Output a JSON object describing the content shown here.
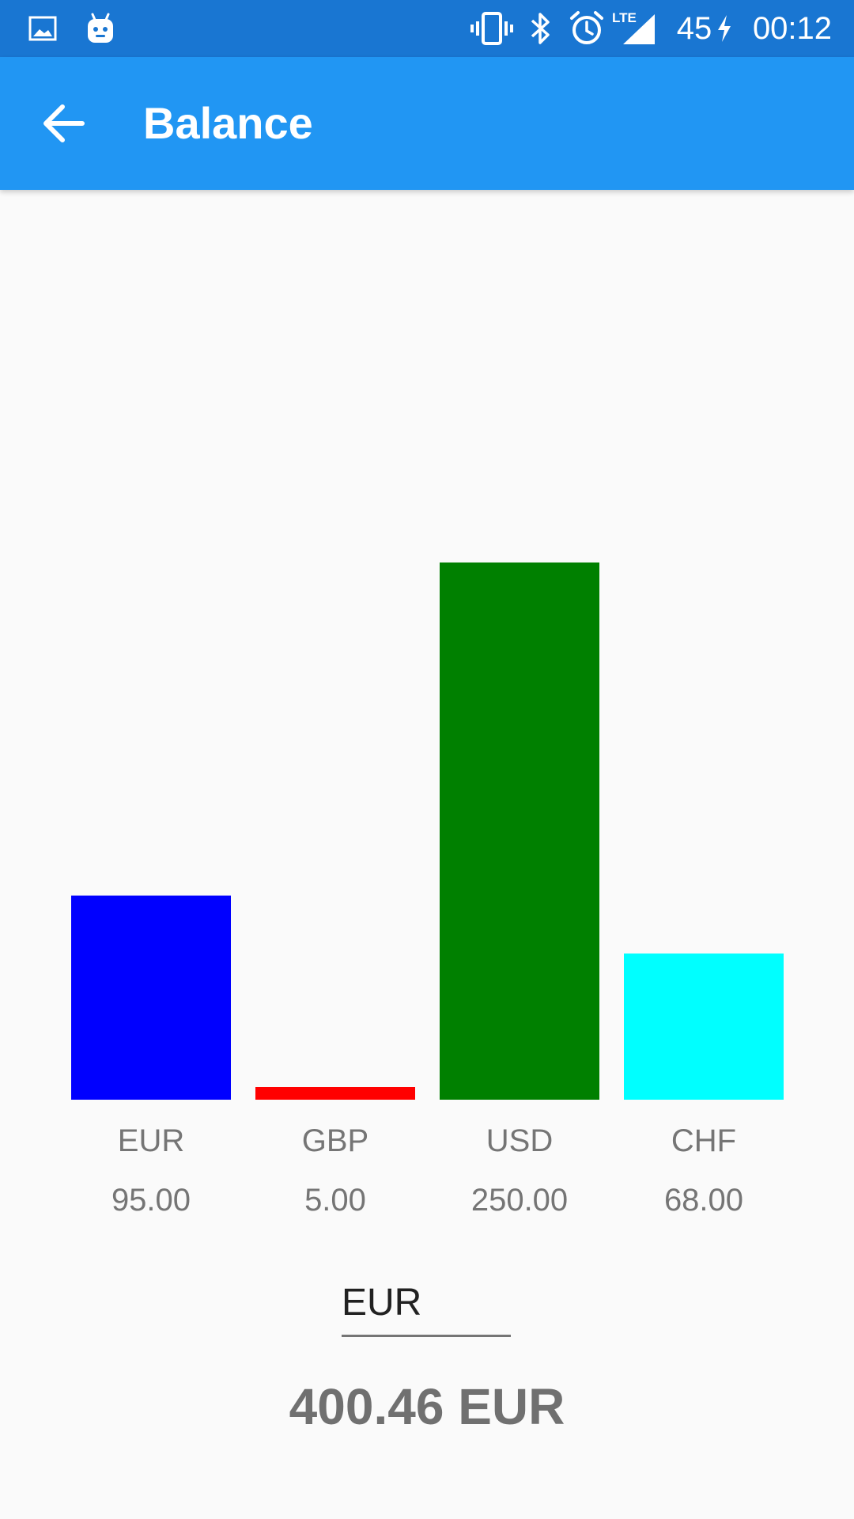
{
  "status_bar": {
    "icons": [
      "image-icon",
      "android-icon",
      "vibrate-icon",
      "bluetooth-icon",
      "alarm-icon",
      "lte-signal-icon",
      "charging-icon"
    ],
    "lte_label": "LTE",
    "battery": "45",
    "time": "00:12"
  },
  "app_bar": {
    "back_icon": "arrow-left-icon",
    "title": "Balance"
  },
  "colors": {
    "status_bar": "#1976d2",
    "app_bar": "#2196f3",
    "background": "#fafafa"
  },
  "chart_data": {
    "type": "bar",
    "categories": [
      "EUR",
      "GBP",
      "USD",
      "CHF"
    ],
    "values": [
      95.0,
      5.0,
      250.0,
      68.0
    ],
    "value_labels": [
      "95.00",
      "5.00",
      "250.00",
      "68.00"
    ],
    "colors": [
      "#0000ff",
      "#ff0000",
      "#008000",
      "#00ffff"
    ],
    "ylim": [
      0,
      250
    ],
    "grid": false,
    "legend": "none"
  },
  "currency_selector": {
    "value": "EUR"
  },
  "total": {
    "text": "400.46 EUR"
  }
}
